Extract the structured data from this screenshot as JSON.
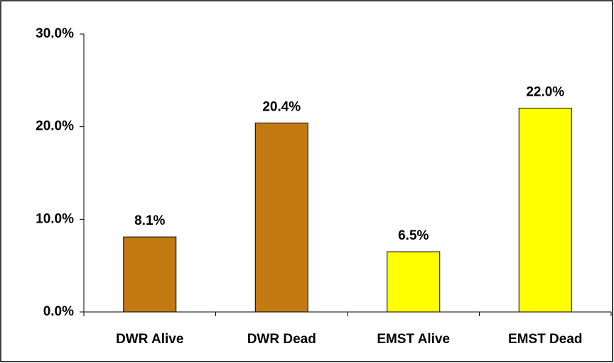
{
  "chart_data": {
    "type": "bar",
    "categories": [
      "DWR Alive",
      "DWR Dead",
      "EMST Alive",
      "EMST Dead"
    ],
    "values": [
      8.1,
      20.4,
      6.5,
      22.0
    ],
    "value_labels": [
      "8.1%",
      "20.4%",
      "6.5%",
      "22.0%"
    ],
    "colors": [
      "#c47a12",
      "#c47a12",
      "#ffff00",
      "#ffff00"
    ],
    "ylim": [
      0,
      30
    ],
    "yticks": [
      {
        "value": 0,
        "label": "0.0%"
      },
      {
        "value": 10,
        "label": "10.0%"
      },
      {
        "value": 20,
        "label": "20.0%"
      },
      {
        "value": 30,
        "label": "30.0%"
      }
    ],
    "grid": false
  }
}
